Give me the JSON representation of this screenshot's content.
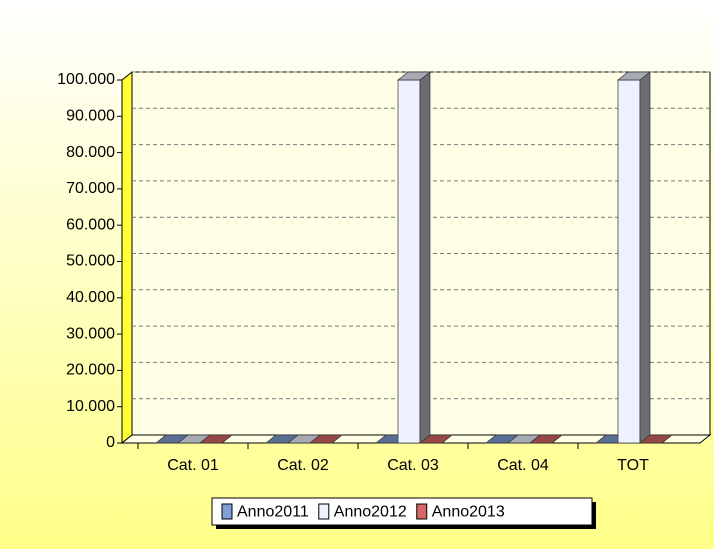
{
  "chart_data": {
    "type": "bar3d",
    "categories": [
      "Cat. 01",
      "Cat. 02",
      "Cat. 03",
      "Cat. 04",
      "TOT"
    ],
    "series": [
      {
        "name": "Anno2011",
        "color": "#7f9fd6",
        "values": [
          0,
          0,
          0,
          0,
          0
        ]
      },
      {
        "name": "Anno2012",
        "color": "#eef2ff",
        "values": [
          0,
          0,
          100000,
          0,
          100000
        ]
      },
      {
        "name": "Anno2013",
        "color": "#d96666",
        "values": [
          0,
          0,
          0,
          0,
          0
        ]
      }
    ],
    "ylim": [
      0,
      100000
    ],
    "yticks": [
      0,
      {
        "value": 10000,
        "label": "10.000"
      },
      {
        "value": 20000,
        "label": "20.000"
      },
      {
        "value": 30000,
        "label": "30.000"
      },
      {
        "value": 40000,
        "label": "40.000"
      },
      {
        "value": 50000,
        "label": "50.000"
      },
      {
        "value": 60000,
        "label": "60.000"
      },
      {
        "value": 70000,
        "label": "70.000"
      },
      {
        "value": 80000,
        "label": "80.000"
      },
      {
        "value": 90000,
        "label": "90.000"
      },
      {
        "value": 100000,
        "label": "100.000"
      }
    ],
    "grid": true,
    "legend": "bottom"
  }
}
